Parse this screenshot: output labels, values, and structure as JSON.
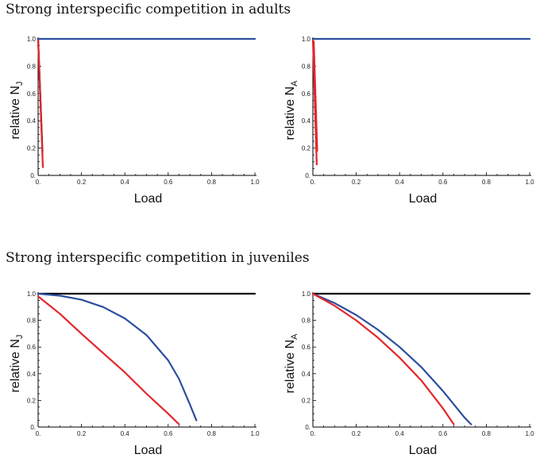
{
  "sections": {
    "top_title": "Strong interspecific competition in adults",
    "bottom_title": "Strong interspecific competition in juveniles"
  },
  "colors": {
    "black": "#000000",
    "red": "#e3262b",
    "blue": "#2c4f9e"
  },
  "chart_data": [
    {
      "type": "line",
      "panel": "top-left",
      "xlabel": "Load",
      "ylabel": {
        "main": "relative N",
        "sub": "J"
      },
      "xlim": [
        0,
        1
      ],
      "ylim": [
        0,
        1
      ],
      "xticks": [
        "0.",
        "0.2",
        "0.4",
        "0.6",
        "0.8",
        "1.0"
      ],
      "yticks": [
        "0.",
        "0.2",
        "0.4",
        "0.6",
        "0.8",
        "1.0"
      ],
      "series": [
        {
          "color": "black",
          "points": [
            [
              0,
              1.0
            ],
            [
              0.02,
              0.17
            ]
          ]
        },
        {
          "color": "red",
          "points": [
            [
              0,
              1.0
            ],
            [
              0.022,
              0.06
            ]
          ]
        },
        {
          "color": "blue",
          "points": [
            [
              0,
              1.0
            ],
            [
              1.0,
              1.0
            ]
          ]
        }
      ]
    },
    {
      "type": "line",
      "panel": "top-right",
      "xlabel": "Load",
      "ylabel": {
        "main": "relative N",
        "sub": "A"
      },
      "xlim": [
        0,
        1
      ],
      "ylim": [
        0,
        1
      ],
      "xticks": [
        "0.",
        "0.2",
        "0.4",
        "0.6",
        "0.8",
        "1.0"
      ],
      "yticks": [
        "0.",
        "0.2",
        "0.4",
        "0.6",
        "0.8",
        "1.0"
      ],
      "series": [
        {
          "color": "red",
          "points": [
            [
              0,
              1.0
            ],
            [
              0.018,
              0.08
            ]
          ]
        },
        {
          "color": "red",
          "points": [
            [
              0.004,
              0.98
            ],
            [
              0.02,
              0.18
            ]
          ]
        },
        {
          "color": "blue",
          "points": [
            [
              0,
              1.0
            ],
            [
              1.0,
              1.0
            ]
          ]
        }
      ]
    },
    {
      "type": "line",
      "panel": "bottom-left",
      "xlabel": "Load",
      "ylabel": {
        "main": "relative N",
        "sub": "J"
      },
      "xlim": [
        0,
        1
      ],
      "ylim": [
        0,
        1
      ],
      "xticks": [
        "0.",
        "0.2",
        "0.4",
        "0.6",
        "0.8",
        "1.0"
      ],
      "yticks": [
        "0.",
        "0.2",
        "0.4",
        "0.6",
        "0.8",
        "1.0"
      ],
      "series": [
        {
          "color": "black",
          "points": [
            [
              0,
              1.0
            ],
            [
              1.0,
              1.0
            ]
          ]
        },
        {
          "color": "blue",
          "points": [
            [
              0,
              1.0
            ],
            [
              0.1,
              0.985
            ],
            [
              0.2,
              0.955
            ],
            [
              0.3,
              0.9
            ],
            [
              0.4,
              0.815
            ],
            [
              0.5,
              0.69
            ],
            [
              0.6,
              0.5
            ],
            [
              0.65,
              0.36
            ],
            [
              0.7,
              0.17
            ],
            [
              0.73,
              0.05
            ]
          ]
        },
        {
          "color": "red",
          "points": [
            [
              0,
              0.98
            ],
            [
              0.1,
              0.85
            ],
            [
              0.2,
              0.7
            ],
            [
              0.3,
              0.555
            ],
            [
              0.4,
              0.41
            ],
            [
              0.5,
              0.25
            ],
            [
              0.6,
              0.1
            ],
            [
              0.65,
              0.02
            ]
          ]
        }
      ]
    },
    {
      "type": "line",
      "panel": "bottom-right",
      "xlabel": "Load",
      "ylabel": {
        "main": "relative N",
        "sub": "A"
      },
      "xlim": [
        0,
        1
      ],
      "ylim": [
        0,
        1
      ],
      "xticks": [
        "0.",
        "0.2",
        "0.4",
        "0.6",
        "0.8",
        "1.0"
      ],
      "yticks": [
        "0.",
        "0.2",
        "0.4",
        "0.6",
        "0.8",
        "1.0"
      ],
      "series": [
        {
          "color": "black",
          "points": [
            [
              0,
              1.0
            ],
            [
              1.0,
              1.0
            ]
          ]
        },
        {
          "color": "blue",
          "points": [
            [
              0,
              1.0
            ],
            [
              0.1,
              0.93
            ],
            [
              0.2,
              0.84
            ],
            [
              0.3,
              0.73
            ],
            [
              0.4,
              0.6
            ],
            [
              0.5,
              0.45
            ],
            [
              0.6,
              0.27
            ],
            [
              0.7,
              0.07
            ],
            [
              0.73,
              0.02
            ]
          ]
        },
        {
          "color": "red",
          "points": [
            [
              0,
              1.0
            ],
            [
              0.1,
              0.91
            ],
            [
              0.2,
              0.8
            ],
            [
              0.3,
              0.67
            ],
            [
              0.4,
              0.52
            ],
            [
              0.5,
              0.35
            ],
            [
              0.6,
              0.14
            ],
            [
              0.65,
              0.02
            ]
          ]
        }
      ]
    }
  ]
}
